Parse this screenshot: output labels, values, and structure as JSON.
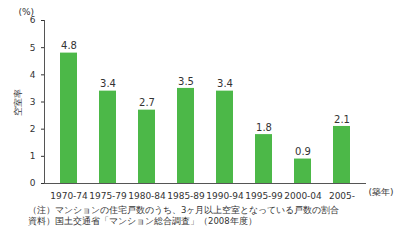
{
  "chart_data": {
    "type": "bar",
    "categories": [
      "1970-74",
      "1975-79",
      "1980-84",
      "1985-89",
      "1990-94",
      "1995-99",
      "2000-04",
      "2005-"
    ],
    "values": [
      4.8,
      3.4,
      2.7,
      3.5,
      3.4,
      1.8,
      0.9,
      2.1
    ],
    "color": "#4cb848",
    "ylim": [
      0,
      6
    ],
    "yticks": [
      0,
      1,
      2,
      3,
      4,
      5,
      6
    ],
    "ylabel": "空室率",
    "xlabel": "(築年)",
    "annotations": [
      "(%)"
    ],
    "caption": [
      "（注）マンションの住宅戸数のうち、3ヶ月以上空室となっている戸数の割合",
      "資料）国土交通省「マンション総合調査」（2008年度）"
    ],
    "data_labels": true,
    "grid": false
  }
}
